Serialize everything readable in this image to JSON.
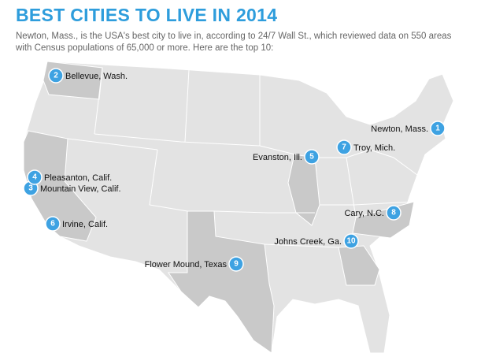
{
  "header": {
    "title": "BEST CITIES TO LIVE IN 2014",
    "subtitle": "Newton, Mass., is the USA's best city to live in, according to 24/7 Wall St., which reviewed data on 550 areas with Census populations of 65,000 or more. Here are the top 10:"
  },
  "cities": [
    {
      "rank": 1,
      "label": "Newton, Mass."
    },
    {
      "rank": 2,
      "label": "Bellevue, Wash."
    },
    {
      "rank": 3,
      "label": "Mountain View, Calif."
    },
    {
      "rank": 4,
      "label": "Pleasanton, Calif."
    },
    {
      "rank": 5,
      "label": "Evanston, Ill."
    },
    {
      "rank": 6,
      "label": "Irvine, Calif."
    },
    {
      "rank": 7,
      "label": "Troy, Mich."
    },
    {
      "rank": 8,
      "label": "Cary, N.C."
    },
    {
      "rank": 9,
      "label": "Flower Mound, Texas"
    },
    {
      "rank": 10,
      "label": "Johns Creek, Ga."
    }
  ]
}
